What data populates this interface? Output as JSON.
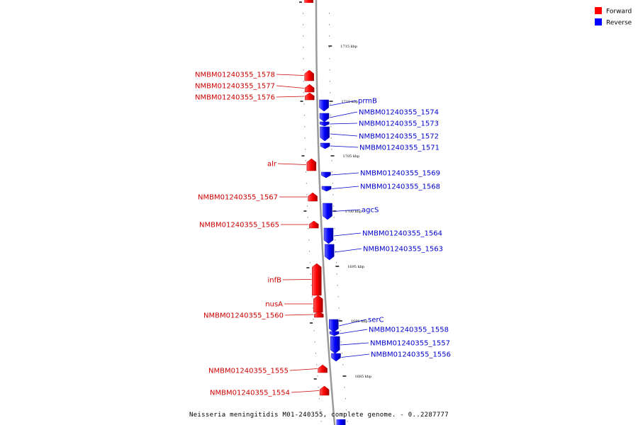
{
  "colors": {
    "forward": "#ff0000",
    "reverse": "#0000ff",
    "label_forward": "#cc0000",
    "label_reverse": "#0000cc",
    "backbone": "#9a9a9a"
  },
  "legend": [
    {
      "name": "Forward",
      "strand": "forward"
    },
    {
      "name": "Reverse",
      "strand": "reverse"
    }
  ],
  "caption": "Neisseria meningitidis M01-240355, complete genome. - 0..2287777",
  "ticks": [
    "1715 kbp",
    "1710 kbp",
    "1705 kbp",
    "1700 kbp",
    "1695 kbp",
    "1690 kbp",
    "1685 kbp"
  ],
  "genes": [
    {
      "label": "NMBM01240355_1578",
      "strand": "forward"
    },
    {
      "label": "NMBM01240355_1577",
      "strand": "forward"
    },
    {
      "label": "NMBM01240355_1576",
      "strand": "forward"
    },
    {
      "label": "prmB",
      "strand": "reverse"
    },
    {
      "label": "NMBM01240355_1574",
      "strand": "reverse"
    },
    {
      "label": "NMBM01240355_1573",
      "strand": "reverse"
    },
    {
      "label": "NMBM01240355_1572",
      "strand": "reverse"
    },
    {
      "label": "NMBM01240355_1571",
      "strand": "reverse"
    },
    {
      "label": "alr",
      "strand": "forward"
    },
    {
      "label": "NMBM01240355_1569",
      "strand": "reverse"
    },
    {
      "label": "NMBM01240355_1568",
      "strand": "reverse"
    },
    {
      "label": "NMBM01240355_1567",
      "strand": "forward"
    },
    {
      "label": "agcS",
      "strand": "reverse"
    },
    {
      "label": "NMBM01240355_1565",
      "strand": "forward"
    },
    {
      "label": "NMBM01240355_1564",
      "strand": "reverse"
    },
    {
      "label": "NMBM01240355_1563",
      "strand": "reverse"
    },
    {
      "label": "infB",
      "strand": "forward"
    },
    {
      "label": "nusA",
      "strand": "forward"
    },
    {
      "label": "NMBM01240355_1560",
      "strand": "forward"
    },
    {
      "label": "serC",
      "strand": "reverse"
    },
    {
      "label": "NMBM01240355_1558",
      "strand": "reverse"
    },
    {
      "label": "NMBM01240355_1557",
      "strand": "reverse"
    },
    {
      "label": "NMBM01240355_1556",
      "strand": "reverse"
    },
    {
      "label": "NMBM01240355_1555",
      "strand": "forward"
    },
    {
      "label": "NMBM01240355_1554",
      "strand": "forward"
    }
  ]
}
